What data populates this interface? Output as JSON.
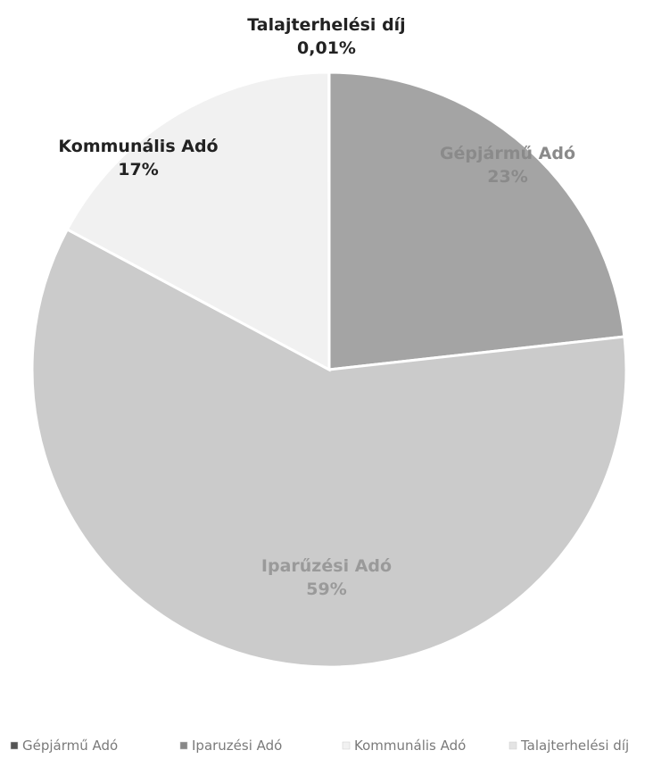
{
  "chart_data": {
    "type": "pie",
    "title": "",
    "slices": [
      {
        "label": "Gépjármű Adó",
        "value": 23,
        "display": "23%",
        "color": "#a4a4a4",
        "text_color": "#8a8a8a"
      },
      {
        "label": "Iparűzési Adó",
        "value": 59,
        "display": "59%",
        "color": "#cbcbcb",
        "text_color": "#9a9a9a"
      },
      {
        "label": "Kommunális Adó",
        "value": 17,
        "display": "17%",
        "color": "#f1f1f1",
        "text_color": "#222222"
      },
      {
        "label": "Talajterhelési díj",
        "value": 0.01,
        "display": "0,01%",
        "color": "#e4e4e4",
        "text_color": "#222222"
      }
    ],
    "legend": {
      "placement": "bottom",
      "labels": [
        "Gépjármű Adó",
        "Iparuzési Adó",
        "Kommunális Adó",
        "Talajterhelési díj"
      ]
    }
  }
}
